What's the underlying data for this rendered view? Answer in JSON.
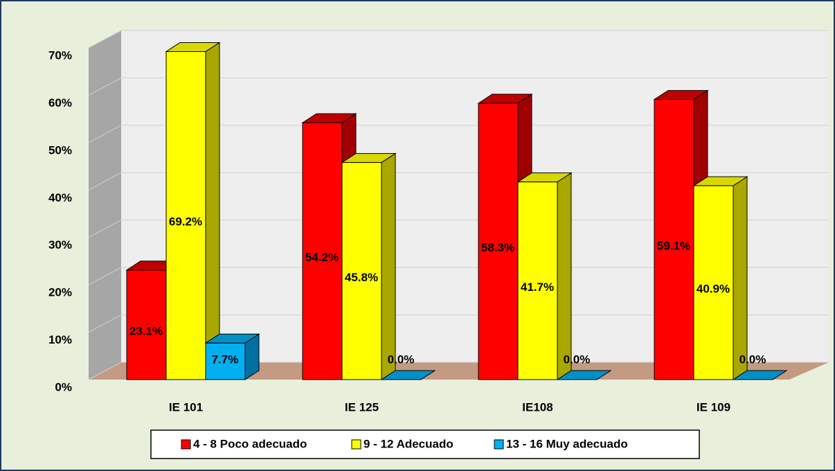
{
  "chart_data": {
    "type": "bar3d",
    "categories": [
      "IE 101",
      "IE 125",
      "IE108",
      "IE 109"
    ],
    "series": [
      {
        "name": "4 - 8 Poco adecuado",
        "color": "#ff0000",
        "values": [
          23.1,
          54.2,
          58.3,
          59.1
        ],
        "value_labels": [
          "23.1%",
          "54.2%",
          "58.3%",
          "59.1%"
        ]
      },
      {
        "name": "9 - 12 Adecuado",
        "color": "#ffff00",
        "values": [
          69.2,
          45.8,
          41.7,
          40.9
        ],
        "value_labels": [
          "69.2%",
          "45.8%",
          "41.7%",
          "40.9%"
        ]
      },
      {
        "name": "13 - 16 Muy adecuado",
        "color": "#00b0f0",
        "values": [
          7.7,
          0.0,
          0.0,
          0.0
        ],
        "value_labels": [
          "7.7%",
          "0.0%",
          "0.0%",
          "0.0%"
        ]
      }
    ],
    "ylim": [
      0,
      70
    ],
    "yticks": [
      {
        "value": 0,
        "label": "0%"
      },
      {
        "value": 10,
        "label": "10%"
      },
      {
        "value": 20,
        "label": "20%"
      },
      {
        "value": 30,
        "label": "30%"
      },
      {
        "value": 40,
        "label": "40%"
      },
      {
        "value": 50,
        "label": "50%"
      },
      {
        "value": 60,
        "label": "60%"
      },
      {
        "value": 70,
        "label": "70%"
      }
    ],
    "grid": true,
    "legend": "bottom"
  }
}
